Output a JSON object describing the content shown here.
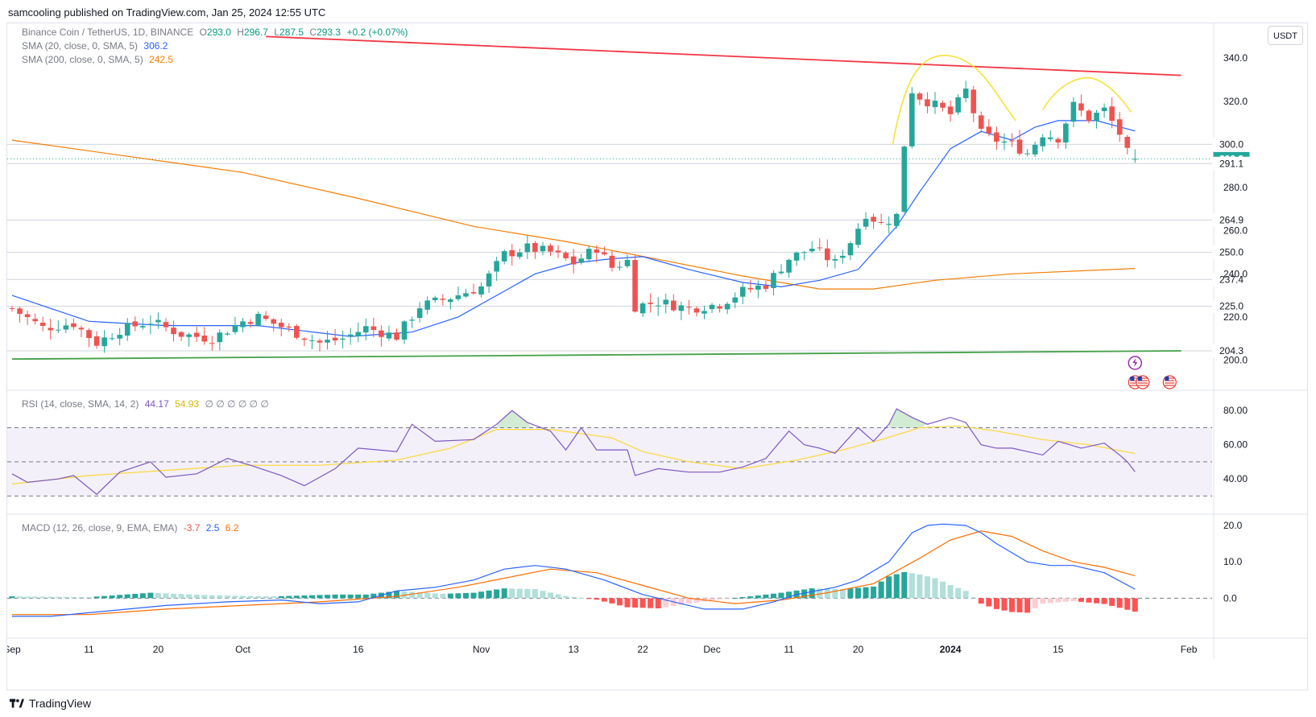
{
  "publisher_line": "samcooling published on TradingView.com, Jan 25, 2024 12:55 UTC",
  "brand": "TradingView",
  "unit_button": "USDT",
  "legend": {
    "symbol": "Binance Coin / TetherUS, 1D, BINANCE",
    "o_label": "O",
    "o": "293.0",
    "h_label": "H",
    "h": "296.7",
    "l_label": "L",
    "l": "287.5",
    "c_label": "C",
    "c": "293.3",
    "change": "+0.2 (+0.07%)",
    "sma20_label": "SMA (20, close, 0, SMA, 5)",
    "sma20_value": "306.2",
    "sma200_label": "SMA (200, close, 0, SMA, 5)",
    "sma200_value": "242.5",
    "rsi_label": "RSI (14, close, SMA, 14, 2)",
    "rsi_value": "44.17",
    "rsi_ma_value": "54.93",
    "rsi_extra": "∅ ∅ ∅ ∅ ∅ ∅",
    "macd_label": "MACD (12, 26, close, 9, EMA, EMA)",
    "macd_hist": "-3.7",
    "macd_line": "2.5",
    "macd_signal": "6.2"
  },
  "colors": {
    "up": "#26a69a",
    "down": "#ef5350",
    "sma20": "#2962ff",
    "sma200": "#f57c00",
    "trend_red": "#f23645",
    "trend_green": "#43a047",
    "pattern": "#f7e13a",
    "rsi": "#7e57c2",
    "rsi_ma": "#fdd835",
    "macd": "#2962ff",
    "signal": "#ff6d00"
  },
  "chart_data": [
    {
      "type": "candlestick",
      "title": "Binance Coin / TetherUS, 1D, BINANCE",
      "ylim": [
        192,
        352
      ],
      "price_ticks": [
        "340.0",
        "320.0",
        "280.0",
        "260.0",
        "240.0",
        "220.0",
        "200.0"
      ],
      "price_marks": [
        {
          "value": 300.0,
          "label": "300.0",
          "style": "plain"
        },
        {
          "value": 293.3,
          "label": "293.3",
          "style": "current"
        },
        {
          "value": 291.1,
          "label": "291.1",
          "style": "plain"
        },
        {
          "value": 264.9,
          "label": "264.9",
          "style": "plain"
        },
        {
          "value": 250.0,
          "label": "250.0",
          "style": "plain"
        },
        {
          "value": 237.4,
          "label": "237.4",
          "style": "plain"
        },
        {
          "value": 225.0,
          "label": "225.0",
          "style": "plain"
        },
        {
          "value": 204.3,
          "label": "204.3",
          "style": "plain"
        }
      ],
      "x_ticks": [
        {
          "day": 0,
          "label": "Sep"
        },
        {
          "day": 10,
          "label": "11"
        },
        {
          "day": 19,
          "label": "20"
        },
        {
          "day": 30,
          "label": "Oct"
        },
        {
          "day": 45,
          "label": "16"
        },
        {
          "day": 61,
          "label": "Nov"
        },
        {
          "day": 73,
          "label": "13"
        },
        {
          "day": 82,
          "label": "22"
        },
        {
          "day": 91,
          "label": "Dec"
        },
        {
          "day": 101,
          "label": "11"
        },
        {
          "day": 110,
          "label": "20"
        },
        {
          "day": 122,
          "label": "2024"
        },
        {
          "day": 136,
          "label": "15"
        },
        {
          "day": 153,
          "label": "Feb"
        }
      ],
      "start_date": "2023-09-01",
      "last_day": 146,
      "close_path": [
        [
          0,
          224
        ],
        [
          4,
          215
        ],
        [
          8,
          217
        ],
        [
          11,
          208
        ],
        [
          14,
          214
        ],
        [
          18,
          218
        ],
        [
          22,
          212
        ],
        [
          26,
          210
        ],
        [
          30,
          218
        ],
        [
          32,
          220
        ],
        [
          36,
          214
        ],
        [
          40,
          208
        ],
        [
          43,
          210
        ],
        [
          46,
          215
        ],
        [
          50,
          211
        ],
        [
          53,
          225
        ],
        [
          57,
          229
        ],
        [
          61,
          234
        ],
        [
          64,
          249
        ],
        [
          67,
          252
        ],
        [
          70,
          250
        ],
        [
          73,
          245
        ],
        [
          76,
          252
        ],
        [
          78,
          243
        ],
        [
          80,
          246
        ],
        [
          81,
          225
        ],
        [
          84,
          227
        ],
        [
          88,
          224
        ],
        [
          92,
          226
        ],
        [
          95,
          232
        ],
        [
          98,
          235
        ],
        [
          101,
          247
        ],
        [
          104,
          252
        ],
        [
          107,
          245
        ],
        [
          109,
          255
        ],
        [
          111,
          268
        ],
        [
          113,
          263
        ],
        [
          115,
          267
        ],
        [
          116,
          300
        ],
        [
          117,
          325
        ],
        [
          118,
          322
        ],
        [
          120,
          318
        ],
        [
          122,
          314
        ],
        [
          124,
          325
        ],
        [
          126,
          305
        ],
        [
          128,
          302
        ],
        [
          130,
          300
        ],
        [
          132,
          296
        ],
        [
          134,
          305
        ],
        [
          136,
          303
        ],
        [
          138,
          318
        ],
        [
          140,
          312
        ],
        [
          142,
          316
        ],
        [
          144,
          305
        ],
        [
          145,
          296
        ],
        [
          146,
          293.3
        ]
      ],
      "sma20_path": [
        [
          0,
          230
        ],
        [
          10,
          218
        ],
        [
          20,
          216
        ],
        [
          32,
          216
        ],
        [
          44,
          211
        ],
        [
          52,
          213
        ],
        [
          58,
          220
        ],
        [
          63,
          230
        ],
        [
          68,
          240
        ],
        [
          73,
          245
        ],
        [
          78,
          247
        ],
        [
          82,
          248
        ],
        [
          88,
          242
        ],
        [
          95,
          236
        ],
        [
          100,
          234
        ],
        [
          105,
          237
        ],
        [
          110,
          242
        ],
        [
          115,
          262
        ],
        [
          118,
          278
        ],
        [
          122,
          298
        ],
        [
          126,
          306
        ],
        [
          130,
          302
        ],
        [
          133,
          308
        ],
        [
          136,
          311
        ],
        [
          141,
          311
        ],
        [
          146,
          306.2
        ]
      ],
      "sma200_path": [
        [
          0,
          302
        ],
        [
          30,
          287
        ],
        [
          45,
          275
        ],
        [
          60,
          262
        ],
        [
          72,
          255
        ],
        [
          85,
          246
        ],
        [
          95,
          239
        ],
        [
          105,
          233
        ],
        [
          112,
          233
        ],
        [
          120,
          237
        ],
        [
          130,
          240
        ],
        [
          146,
          242.5
        ]
      ],
      "trendlines": [
        {
          "name": "resistance",
          "from": [
            33,
            350
          ],
          "to": [
            152,
            332
          ]
        },
        {
          "name": "support",
          "from": [
            0,
            200.5
          ],
          "to": [
            152,
            204.3
          ]
        }
      ]
    },
    {
      "type": "line",
      "title": "RSI (14, close, SMA, 14, 2)",
      "ylim": [
        25,
        90
      ],
      "ticks": [
        "80.00",
        "60.00",
        "40.00"
      ],
      "bands": [
        70,
        50,
        30
      ],
      "rsi": [
        [
          0,
          43
        ],
        [
          2,
          38
        ],
        [
          6,
          40
        ],
        [
          8,
          42
        ],
        [
          11,
          31
        ],
        [
          14,
          44
        ],
        [
          18,
          50
        ],
        [
          20,
          41
        ],
        [
          24,
          43
        ],
        [
          28,
          52
        ],
        [
          31,
          48
        ],
        [
          35,
          42
        ],
        [
          38,
          36
        ],
        [
          42,
          46
        ],
        [
          45,
          58
        ],
        [
          50,
          56
        ],
        [
          52,
          72
        ],
        [
          55,
          62
        ],
        [
          60,
          63
        ],
        [
          63,
          72
        ],
        [
          65,
          80
        ],
        [
          67,
          73
        ],
        [
          70,
          68
        ],
        [
          72,
          57
        ],
        [
          74,
          70
        ],
        [
          76,
          57
        ],
        [
          80,
          57
        ],
        [
          81,
          42
        ],
        [
          84,
          46
        ],
        [
          88,
          44
        ],
        [
          92,
          44
        ],
        [
          95,
          47
        ],
        [
          98,
          52
        ],
        [
          101,
          68
        ],
        [
          103,
          60
        ],
        [
          105,
          58
        ],
        [
          107,
          55
        ],
        [
          110,
          70
        ],
        [
          112,
          62
        ],
        [
          114,
          72
        ],
        [
          115,
          81
        ],
        [
          117,
          76
        ],
        [
          119,
          72
        ],
        [
          122,
          76
        ],
        [
          124,
          73
        ],
        [
          126,
          60
        ],
        [
          128,
          58
        ],
        [
          130,
          58
        ],
        [
          134,
          54
        ],
        [
          136,
          62
        ],
        [
          139,
          58
        ],
        [
          142,
          61
        ],
        [
          144,
          54
        ],
        [
          145,
          50
        ],
        [
          146,
          44.17
        ]
      ],
      "rsi_ma": [
        [
          0,
          37
        ],
        [
          10,
          42
        ],
        [
          20,
          45
        ],
        [
          30,
          48
        ],
        [
          40,
          48
        ],
        [
          50,
          51
        ],
        [
          57,
          58
        ],
        [
          63,
          69
        ],
        [
          70,
          69
        ],
        [
          78,
          64
        ],
        [
          82,
          56
        ],
        [
          88,
          50
        ],
        [
          95,
          46
        ],
        [
          102,
          51
        ],
        [
          108,
          57
        ],
        [
          113,
          63
        ],
        [
          118,
          70
        ],
        [
          123,
          71
        ],
        [
          128,
          68
        ],
        [
          134,
          63
        ],
        [
          140,
          60
        ],
        [
          146,
          54.93
        ]
      ]
    },
    {
      "type": "bar",
      "title": "MACD (12, 26, close, 9, EMA, EMA)",
      "ylim": [
        -9,
        22
      ],
      "ticks": [
        "20.0",
        "10.0",
        "0.0"
      ],
      "macd": [
        [
          0,
          -5
        ],
        [
          5,
          -5
        ],
        [
          10,
          -4
        ],
        [
          15,
          -3
        ],
        [
          20,
          -2
        ],
        [
          28,
          -1
        ],
        [
          35,
          -0.5
        ],
        [
          40,
          -1.5
        ],
        [
          45,
          -1
        ],
        [
          50,
          2
        ],
        [
          55,
          3
        ],
        [
          60,
          5
        ],
        [
          64,
          8
        ],
        [
          68,
          9
        ],
        [
          72,
          8
        ],
        [
          77,
          5
        ],
        [
          82,
          1
        ],
        [
          86,
          -1
        ],
        [
          90,
          -3
        ],
        [
          95,
          -3
        ],
        [
          99,
          -1
        ],
        [
          102,
          1
        ],
        [
          107,
          3
        ],
        [
          110,
          5
        ],
        [
          114,
          10
        ],
        [
          117,
          18
        ],
        [
          119,
          20
        ],
        [
          121,
          20.4
        ],
        [
          124,
          20
        ],
        [
          126,
          18
        ],
        [
          128,
          15
        ],
        [
          132,
          10
        ],
        [
          135,
          9
        ],
        [
          138,
          9
        ],
        [
          142,
          7
        ],
        [
          146,
          2.5
        ]
      ],
      "signal": [
        [
          0,
          -4.5
        ],
        [
          10,
          -4.5
        ],
        [
          20,
          -3
        ],
        [
          30,
          -2
        ],
        [
          40,
          -1
        ],
        [
          50,
          0.5
        ],
        [
          58,
          3
        ],
        [
          64,
          5.5
        ],
        [
          70,
          8
        ],
        [
          76,
          7
        ],
        [
          82,
          3.5
        ],
        [
          88,
          0
        ],
        [
          94,
          -1.5
        ],
        [
          100,
          -0.5
        ],
        [
          106,
          1.5
        ],
        [
          112,
          4
        ],
        [
          118,
          11
        ],
        [
          122,
          16
        ],
        [
          126,
          18.5
        ],
        [
          130,
          17
        ],
        [
          134,
          13
        ],
        [
          138,
          10
        ],
        [
          142,
          8.5
        ],
        [
          146,
          6.2
        ]
      ],
      "histogram": [
        [
          0,
          0.5
        ],
        [
          10,
          0.3
        ],
        [
          18,
          1.5
        ],
        [
          26,
          0.8
        ],
        [
          34,
          0.5
        ],
        [
          42,
          1.0
        ],
        [
          46,
          1.0
        ],
        [
          50,
          2.0
        ],
        [
          56,
          1.2
        ],
        [
          60,
          1.5
        ],
        [
          64,
          2.7
        ],
        [
          68,
          2.5
        ],
        [
          72,
          0.6
        ],
        [
          76,
          -0.4
        ],
        [
          80,
          -2.5
        ],
        [
          84,
          -2.8
        ],
        [
          88,
          -1.5
        ],
        [
          92,
          -0.3
        ],
        [
          96,
          0.5
        ],
        [
          100,
          1.5
        ],
        [
          104,
          2.7
        ],
        [
          108,
          2.5
        ],
        [
          112,
          3.2
        ],
        [
          114,
          6.0
        ],
        [
          116,
          7.2
        ],
        [
          118,
          6.5
        ],
        [
          120,
          5.5
        ],
        [
          122,
          3.6
        ],
        [
          124,
          2.0
        ],
        [
          126,
          -1.5
        ],
        [
          128,
          -3.0
        ],
        [
          130,
          -3.8
        ],
        [
          132,
          -4.0
        ],
        [
          134,
          -1.5
        ],
        [
          138,
          -0.8
        ],
        [
          142,
          -1.6
        ],
        [
          146,
          -3.7
        ]
      ]
    }
  ]
}
